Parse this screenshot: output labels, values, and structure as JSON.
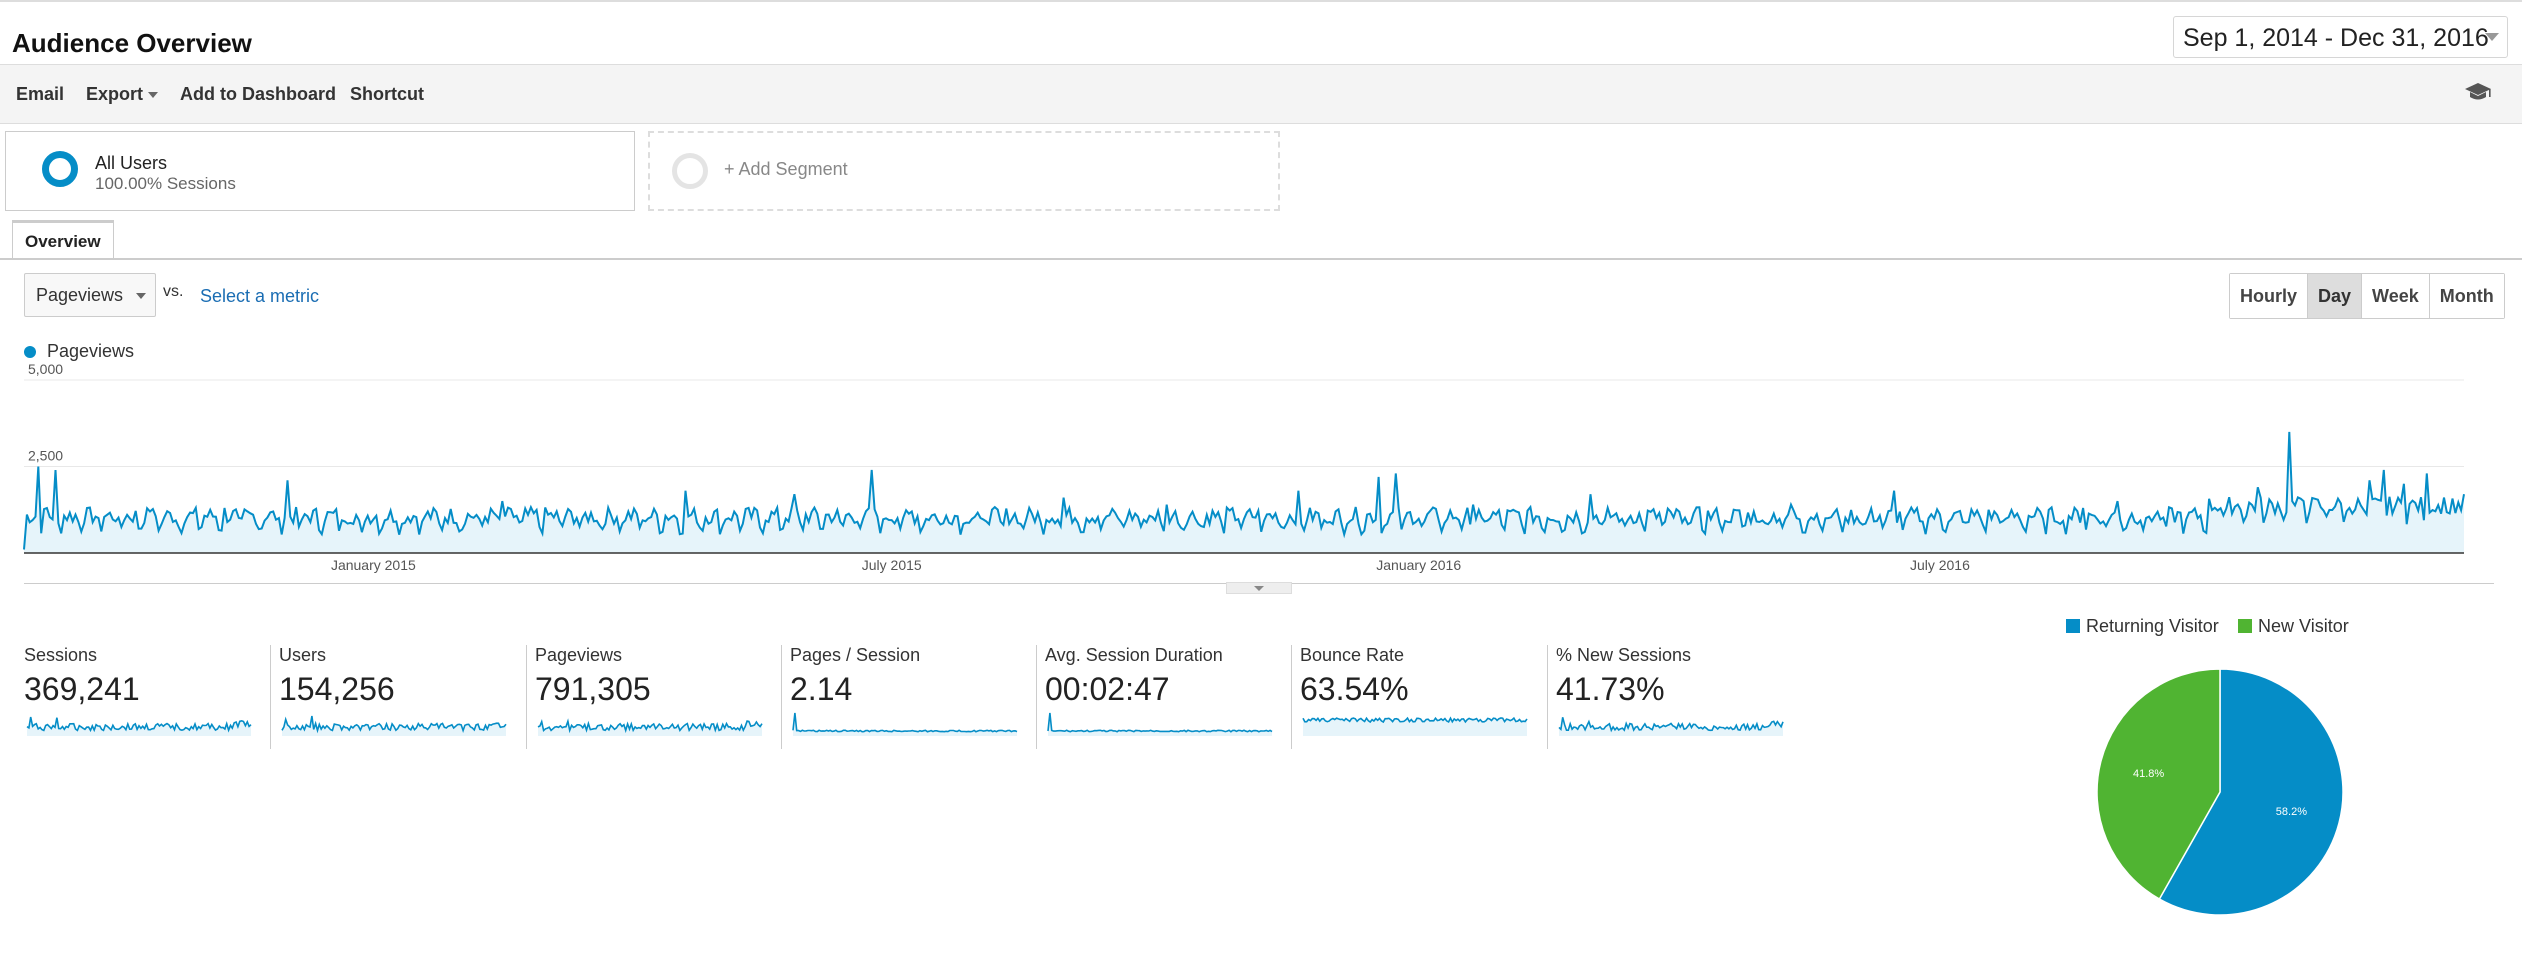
{
  "header": {
    "title": "Audience Overview",
    "date_range": "Sep 1, 2014 - Dec 31, 2016"
  },
  "toolbar": {
    "email": "Email",
    "export": "Export",
    "add_to_dashboard": "Add to Dashboard",
    "shortcut": "Shortcut"
  },
  "segments": {
    "all_users": {
      "name": "All Users",
      "sub": "100.00% Sessions"
    },
    "add_segment": "+ Add Segment"
  },
  "tabs": {
    "overview": "Overview"
  },
  "controls": {
    "metric_selected": "Pageviews",
    "vs": "vs.",
    "select_metric": "Select a metric",
    "granularity": [
      "Hourly",
      "Day",
      "Week",
      "Month"
    ],
    "granularity_active": "Day"
  },
  "colors": {
    "primary": "#058dc7",
    "secondary": "#50b432",
    "fill": "#e6f4fa"
  },
  "chart_data": [
    {
      "type": "area",
      "series": [
        {
          "name": "Pageviews",
          "color": "#058dc7"
        }
      ],
      "legend": "Pageviews",
      "x_range": [
        "2014-09-01",
        "2016-12-31"
      ],
      "ylim": [
        0,
        5000
      ],
      "y_ticks": [
        "5,000",
        "2,500"
      ],
      "x_ticks": [
        "January 2015",
        "July 2015",
        "January 2016",
        "July 2016"
      ],
      "baseline": 1000,
      "points": [
        [
          "2014-09-01",
          100
        ],
        [
          "2014-09-06",
          2500
        ],
        [
          "2014-09-09",
          1300
        ],
        [
          "2014-09-12",
          2400
        ],
        [
          "2014-09-20",
          900
        ],
        [
          "2014-10-15",
          1200
        ],
        [
          "2014-11-10",
          1300
        ],
        [
          "2014-12-02",
          2100
        ],
        [
          "2014-12-28",
          600
        ],
        [
          "2015-02-15",
          1500
        ],
        [
          "2015-04-20",
          1800
        ],
        [
          "2015-05-28",
          1700
        ],
        [
          "2015-06-24",
          2400
        ],
        [
          "2015-07-08",
          1200
        ],
        [
          "2015-08-30",
          1600
        ],
        [
          "2015-10-05",
          1400
        ],
        [
          "2015-11-20",
          1800
        ],
        [
          "2015-12-18",
          2200
        ],
        [
          "2015-12-24",
          2300
        ],
        [
          "2016-01-20",
          1400
        ],
        [
          "2016-03-01",
          1700
        ],
        [
          "2016-05-10",
          1400
        ],
        [
          "2016-06-15",
          1800
        ],
        [
          "2016-07-20",
          1200
        ],
        [
          "2016-08-20",
          1300
        ],
        [
          "2016-09-01",
          1500
        ],
        [
          "2016-10-20",
          1900
        ],
        [
          "2016-10-31",
          3500
        ],
        [
          "2016-11-05",
          1500
        ],
        [
          "2016-11-28",
          2100
        ],
        [
          "2016-12-03",
          2400
        ],
        [
          "2016-12-10",
          2000
        ],
        [
          "2016-12-18",
          2300
        ],
        [
          "2016-12-24",
          1600
        ],
        [
          "2016-12-31",
          1700
        ]
      ]
    },
    {
      "type": "pie",
      "legend": [
        "Returning Visitor",
        "New Visitor"
      ],
      "slices": [
        {
          "label": "Returning Visitor",
          "value": 58.2,
          "display": "58.2%",
          "color": "#058dc7"
        },
        {
          "label": "New Visitor",
          "value": 41.8,
          "display": "41.8%",
          "color": "#50b432"
        }
      ]
    }
  ],
  "scorecards": [
    {
      "name": "Sessions",
      "value": "369,241",
      "profile": "spiky"
    },
    {
      "name": "Users",
      "value": "154,256",
      "profile": "spiky"
    },
    {
      "name": "Pageviews",
      "value": "791,305",
      "profile": "spiky"
    },
    {
      "name": "Pages / Session",
      "value": "2.14",
      "profile": "flat-peak"
    },
    {
      "name": "Avg. Session Duration",
      "value": "00:02:47",
      "profile": "flat-peak"
    },
    {
      "name": "Bounce Rate",
      "value": "63.54%",
      "profile": "high"
    },
    {
      "name": "% New Sessions",
      "value": "41.73%",
      "profile": "spiky"
    }
  ]
}
